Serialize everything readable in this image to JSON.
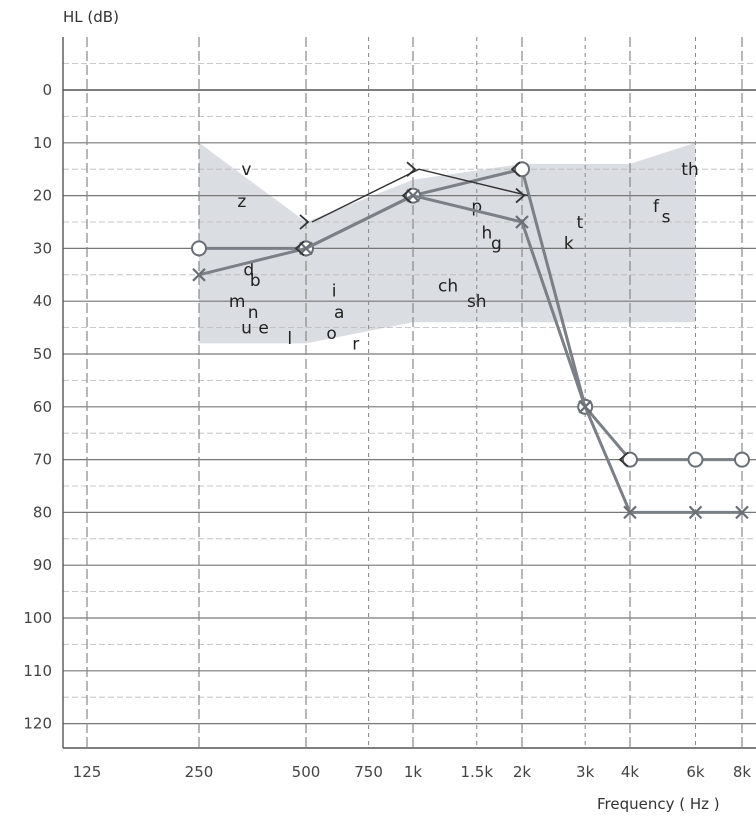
{
  "chart_data": {
    "type": "line",
    "ylabel": "HL (dB)",
    "xlabel": "Frequency ( Hz )",
    "x_ticks": [
      "125",
      "250",
      "500",
      "750",
      "1k",
      "1.5k",
      "2k",
      "3k",
      "4k",
      "6k",
      "8k"
    ],
    "x_tick_values": [
      125,
      250,
      500,
      750,
      1000,
      1500,
      2000,
      3000,
      4000,
      6000,
      8000
    ],
    "y_ticks": [
      0,
      10,
      20,
      30,
      40,
      50,
      60,
      70,
      80,
      90,
      100,
      110,
      120
    ],
    "ylim": [
      -10,
      125
    ],
    "y_inverted": true,
    "grid": true,
    "speech_banana": {
      "color": "#dadde2",
      "outline": [
        [
          250,
          10
        ],
        [
          500,
          25
        ],
        [
          1000,
          17
        ],
        [
          2000,
          14
        ],
        [
          4000,
          14
        ],
        [
          6000,
          10
        ],
        [
          6000,
          44
        ],
        [
          4000,
          44
        ],
        [
          2000,
          44
        ],
        [
          1000,
          44
        ],
        [
          500,
          48
        ],
        [
          250,
          48
        ]
      ],
      "sounds": [
        {
          "text": "v",
          "f": 340,
          "db": 15
        },
        {
          "text": "z",
          "f": 330,
          "db": 21
        },
        {
          "text": "d",
          "f": 345,
          "db": 34
        },
        {
          "text": "b",
          "f": 360,
          "db": 36
        },
        {
          "text": "m",
          "f": 320,
          "db": 40
        },
        {
          "text": "n",
          "f": 355,
          "db": 42
        },
        {
          "text": "u",
          "f": 340,
          "db": 45
        },
        {
          "text": "e",
          "f": 380,
          "db": 45
        },
        {
          "text": "l",
          "f": 450,
          "db": 47
        },
        {
          "text": "i",
          "f": 600,
          "db": 38
        },
        {
          "text": "a",
          "f": 620,
          "db": 42
        },
        {
          "text": "o",
          "f": 590,
          "db": 46
        },
        {
          "text": "r",
          "f": 690,
          "db": 48
        },
        {
          "text": "ch",
          "f": 1250,
          "db": 37
        },
        {
          "text": "sh",
          "f": 1500,
          "db": 40
        },
        {
          "text": "p",
          "f": 1500,
          "db": 22
        },
        {
          "text": "h",
          "f": 1600,
          "db": 27
        },
        {
          "text": "g",
          "f": 1700,
          "db": 29
        },
        {
          "text": "k",
          "f": 2700,
          "db": 29
        },
        {
          "text": "t",
          "f": 2900,
          "db": 25
        },
        {
          "text": "f",
          "f": 4700,
          "db": 22
        },
        {
          "text": "s",
          "f": 5000,
          "db": 24
        },
        {
          "text": "th",
          "f": 5800,
          "db": 15
        }
      ]
    },
    "series": [
      {
        "name": "",
        "marker": "circle",
        "color": "#7b7f86",
        "x": [
          250,
          500,
          1000,
          2000,
          3000,
          4000,
          6000,
          8000
        ],
        "values": [
          30,
          30,
          20,
          15,
          60,
          70,
          70,
          70
        ]
      },
      {
        "name": "",
        "marker": "cross",
        "color": "#7b7f86",
        "x": [
          250,
          500,
          1000,
          2000,
          3000,
          4000,
          6000,
          8000
        ],
        "values": [
          35,
          30,
          20,
          25,
          60,
          80,
          80,
          80
        ]
      },
      {
        "name": "",
        "marker": "bone-right",
        "color": "#333333",
        "x": [
          500,
          1000,
          2000
        ],
        "values": [
          25,
          15,
          20
        ]
      },
      {
        "name": "",
        "marker": "bone-left",
        "color": "#333333",
        "x": [
          500,
          1000,
          2000,
          4000
        ],
        "values": [
          30,
          20,
          15,
          70
        ]
      }
    ]
  }
}
